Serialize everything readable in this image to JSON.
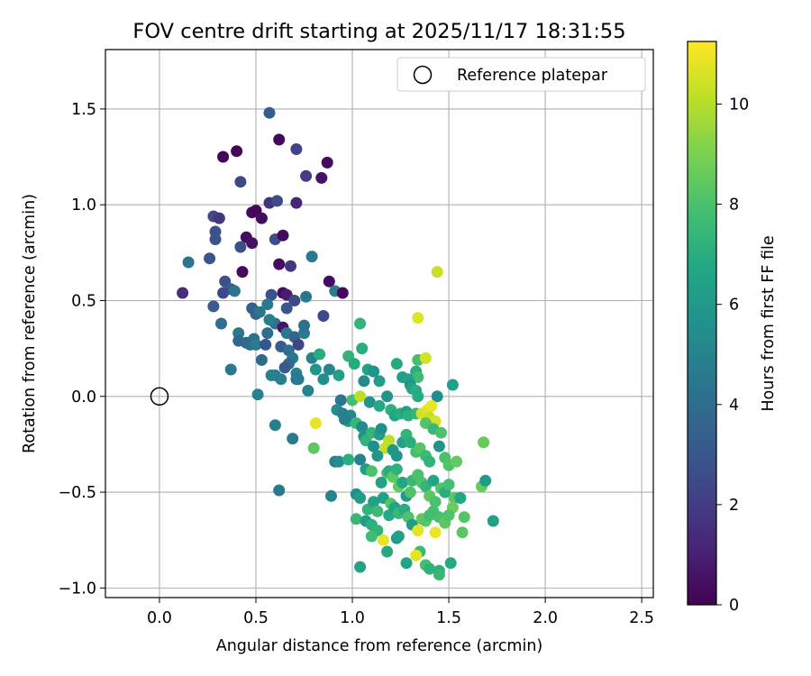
{
  "chart_data": {
    "type": "scatter",
    "title": "FOV centre drift starting at 2025/11/17 18:31:55",
    "xlabel": "Angular distance from reference (arcmin)",
    "ylabel": "Rotation from reference (arcmin)",
    "xlim": [
      -0.28,
      2.56
    ],
    "ylim": [
      -1.05,
      1.81
    ],
    "xticks": [
      0.0,
      0.5,
      1.0,
      1.5,
      2.0,
      2.5
    ],
    "xtick_labels": [
      "0.0",
      "0.5",
      "1.0",
      "1.5",
      "2.0",
      "2.5"
    ],
    "yticks": [
      -1.0,
      -0.5,
      0.0,
      0.5,
      1.0,
      1.5
    ],
    "ytick_labels": [
      "−1.0",
      "−0.5",
      "0.0",
      "0.5",
      "1.0",
      "1.5"
    ],
    "grid": true,
    "legend": {
      "label": "Reference platepar",
      "position": "top-right",
      "marker": "open-circle"
    },
    "reference_point": {
      "x": 0.0,
      "y": 0.0,
      "label": "Reference platepar"
    },
    "colorbar": {
      "label": "Hours from first FF file",
      "min": 0.0,
      "max": 11.25,
      "ticks": [
        0,
        2,
        4,
        6,
        8,
        10
      ],
      "tick_labels": [
        "0",
        "2",
        "4",
        "6",
        "8",
        "10"
      ],
      "colormap": "viridis"
    },
    "series": [
      {
        "name": "FOV centre positions (hours from first FF file)",
        "points": [
          [
            0.33,
            1.25,
            0.1
          ],
          [
            0.4,
            1.28,
            0.1
          ],
          [
            0.62,
            1.34,
            0.2
          ],
          [
            0.87,
            1.22,
            0.3
          ],
          [
            0.84,
            1.14,
            0.6
          ],
          [
            0.57,
            1.48,
            3.3
          ],
          [
            0.71,
            1.29,
            2.2
          ],
          [
            0.76,
            1.15,
            2.0
          ],
          [
            0.42,
            1.12,
            2.5
          ],
          [
            0.57,
            1.01,
            1.6
          ],
          [
            0.61,
            1.02,
            2.6
          ],
          [
            0.71,
            1.01,
            1.2
          ],
          [
            0.48,
            0.96,
            0.3
          ],
          [
            0.5,
            0.97,
            0.2
          ],
          [
            0.53,
            0.93,
            0.4
          ],
          [
            0.28,
            0.94,
            2.6
          ],
          [
            0.31,
            0.93,
            1.8
          ],
          [
            0.29,
            0.86,
            2.8
          ],
          [
            0.29,
            0.82,
            2.9
          ],
          [
            0.45,
            0.83,
            0.4
          ],
          [
            0.48,
            0.8,
            0.5
          ],
          [
            0.42,
            0.78,
            2.7
          ],
          [
            0.6,
            0.82,
            2.7
          ],
          [
            0.64,
            0.84,
            0.3
          ],
          [
            0.26,
            0.72,
            3.0
          ],
          [
            0.15,
            0.7,
            4.4
          ],
          [
            0.43,
            0.65,
            0.3
          ],
          [
            0.62,
            0.69,
            0.4
          ],
          [
            0.68,
            0.68,
            1.8
          ],
          [
            0.79,
            0.73,
            4.6
          ],
          [
            0.12,
            0.54,
            1.5
          ],
          [
            0.34,
            0.6,
            2.8
          ],
          [
            0.37,
            0.56,
            3.3
          ],
          [
            0.39,
            0.55,
            4.3
          ],
          [
            0.33,
            0.54,
            2.4
          ],
          [
            0.58,
            0.53,
            2.8
          ],
          [
            0.64,
            0.54,
            0.4
          ],
          [
            0.66,
            0.53,
            0.9
          ],
          [
            0.7,
            0.5,
            2.4
          ],
          [
            0.76,
            0.52,
            4.4
          ],
          [
            0.88,
            0.6,
            0.4
          ],
          [
            0.91,
            0.55,
            4.7
          ],
          [
            0.95,
            0.54,
            0.3
          ],
          [
            0.28,
            0.47,
            3.3
          ],
          [
            0.32,
            0.38,
            4.0
          ],
          [
            0.48,
            0.46,
            3.5
          ],
          [
            0.5,
            0.43,
            3.6
          ],
          [
            0.52,
            0.44,
            4.4
          ],
          [
            0.56,
            0.48,
            4.5
          ],
          [
            0.66,
            0.46,
            3.0
          ],
          [
            0.6,
            0.38,
            4.2
          ],
          [
            0.57,
            0.4,
            4.8
          ],
          [
            0.64,
            0.36,
            0.6
          ],
          [
            0.66,
            0.33,
            4.5
          ],
          [
            0.7,
            0.31,
            3.6
          ],
          [
            0.72,
            0.27,
            2.2
          ],
          [
            0.75,
            0.33,
            4.6
          ],
          [
            0.75,
            0.37,
            4.2
          ],
          [
            0.85,
            0.42,
            2.4
          ],
          [
            0.41,
            0.33,
            4.5
          ],
          [
            0.41,
            0.29,
            3.8
          ],
          [
            0.45,
            0.28,
            3.8
          ],
          [
            0.49,
            0.3,
            4.3
          ],
          [
            0.47,
            0.27,
            4.0
          ],
          [
            0.5,
            0.27,
            4.6
          ],
          [
            0.55,
            0.27,
            3.0
          ],
          [
            0.56,
            0.33,
            4.0
          ],
          [
            0.63,
            0.26,
            3.3
          ],
          [
            0.67,
            0.24,
            4.1
          ],
          [
            0.69,
            0.2,
            4.6
          ],
          [
            0.67,
            0.17,
            3.8
          ],
          [
            0.65,
            0.15,
            3.2
          ],
          [
            0.6,
            0.11,
            4.5
          ],
          [
            0.63,
            0.09,
            4.8
          ],
          [
            0.58,
            0.11,
            5.0
          ],
          [
            0.53,
            0.19,
            3.9
          ],
          [
            0.37,
            0.14,
            4.5
          ],
          [
            0.51,
            0.01,
            4.8
          ],
          [
            0.79,
            0.2,
            5.0
          ],
          [
            0.83,
            0.22,
            6.9
          ],
          [
            0.81,
            0.14,
            5.8
          ],
          [
            0.88,
            0.14,
            5.2
          ],
          [
            0.93,
            0.11,
            6.4
          ],
          [
            0.71,
            0.12,
            4.9
          ],
          [
            0.71,
            0.09,
            4.3
          ],
          [
            0.72,
            0.09,
            4.6
          ],
          [
            0.77,
            0.03,
            5.0
          ],
          [
            0.85,
            0.09,
            5.5
          ],
          [
            0.94,
            -0.02,
            4.4
          ],
          [
            0.98,
            0.21,
            7.3
          ],
          [
            1.01,
            0.17,
            6.9
          ],
          [
            1.05,
            0.25,
            7.0
          ],
          [
            1.04,
            0.38,
            7.3
          ],
          [
            1.06,
            0.08,
            5.3
          ],
          [
            1.08,
            0.14,
            6.5
          ],
          [
            1.11,
            0.13,
            5.8
          ],
          [
            1.14,
            0.08,
            6.2
          ],
          [
            1.18,
            0.0,
            5.7
          ],
          [
            1.23,
            0.17,
            6.8
          ],
          [
            1.26,
            0.1,
            6.2
          ],
          [
            1.33,
            0.13,
            7.0
          ],
          [
            1.34,
            0.1,
            7.7
          ],
          [
            1.34,
            0.19,
            7.9
          ],
          [
            1.29,
            0.09,
            6.5
          ],
          [
            1.3,
            0.06,
            5.9
          ],
          [
            1.31,
            0.04,
            6.4
          ],
          [
            1.33,
            0.03,
            7.0
          ],
          [
            1.34,
            0.0,
            6.9
          ],
          [
            1.34,
            0.41,
            10.7
          ],
          [
            1.44,
            0.65,
            10.3
          ],
          [
            1.38,
            0.2,
            10.5
          ],
          [
            1.44,
            0.0,
            5.5
          ],
          [
            1.52,
            0.06,
            6.3
          ],
          [
            1.0,
            -0.02,
            7.8
          ],
          [
            1.04,
            0.0,
            10.1
          ],
          [
            1.09,
            -0.03,
            5.8
          ],
          [
            1.14,
            -0.05,
            6.8
          ],
          [
            1.2,
            -0.07,
            7.1
          ],
          [
            1.22,
            -0.1,
            6.6
          ],
          [
            1.25,
            -0.09,
            7.0
          ],
          [
            1.28,
            -0.08,
            6.3
          ],
          [
            1.29,
            -0.1,
            7.1
          ],
          [
            1.33,
            -0.09,
            7.4
          ],
          [
            1.36,
            -0.09,
            10.5
          ],
          [
            1.39,
            -0.07,
            10.8
          ],
          [
            1.41,
            -0.05,
            10.9
          ],
          [
            1.4,
            -0.11,
            10.3
          ],
          [
            1.43,
            -0.13,
            10.6
          ],
          [
            1.38,
            -0.14,
            8.2
          ],
          [
            1.42,
            -0.17,
            7.5
          ],
          [
            1.46,
            -0.19,
            8.0
          ],
          [
            0.81,
            -0.14,
            10.9
          ],
          [
            0.8,
            -0.27,
            8.4
          ],
          [
            0.92,
            -0.07,
            5.4
          ],
          [
            0.95,
            -0.09,
            4.8
          ],
          [
            0.98,
            -0.13,
            6.4
          ],
          [
            0.99,
            -0.1,
            5.2
          ],
          [
            0.96,
            -0.12,
            4.9
          ],
          [
            1.02,
            -0.14,
            7.5
          ],
          [
            1.05,
            -0.16,
            5.3
          ],
          [
            1.06,
            -0.21,
            5.7
          ],
          [
            1.07,
            -0.23,
            7.3
          ],
          [
            1.1,
            -0.19,
            7.4
          ],
          [
            1.11,
            -0.26,
            5.6
          ],
          [
            1.14,
            -0.2,
            6.2
          ],
          [
            1.15,
            -0.17,
            5.6
          ],
          [
            1.17,
            -0.27,
            10.3
          ],
          [
            1.19,
            -0.23,
            10.1
          ],
          [
            1.21,
            -0.28,
            6.0
          ],
          [
            1.23,
            -0.31,
            5.9
          ],
          [
            1.26,
            -0.24,
            6.4
          ],
          [
            1.28,
            -0.2,
            7.3
          ],
          [
            1.3,
            -0.24,
            7.0
          ],
          [
            1.33,
            -0.29,
            7.8
          ],
          [
            1.35,
            -0.27,
            8.2
          ],
          [
            1.38,
            -0.31,
            7.6
          ],
          [
            1.4,
            -0.34,
            7.3
          ],
          [
            1.45,
            -0.26,
            5.8
          ],
          [
            1.48,
            -0.32,
            8.0
          ],
          [
            1.5,
            -0.36,
            8.1
          ],
          [
            1.54,
            -0.34,
            8.5
          ],
          [
            1.68,
            -0.24,
            8.6
          ],
          [
            0.6,
            -0.15,
            4.8
          ],
          [
            0.69,
            -0.22,
            4.6
          ],
          [
            0.91,
            -0.34,
            4.9
          ],
          [
            0.93,
            -0.34,
            5.4
          ],
          [
            0.98,
            -0.33,
            7.0
          ],
          [
            1.04,
            -0.33,
            5.0
          ],
          [
            1.07,
            -0.38,
            6.2
          ],
          [
            1.1,
            -0.39,
            8.0
          ],
          [
            1.13,
            -0.31,
            5.9
          ],
          [
            1.15,
            -0.45,
            6.5
          ],
          [
            1.18,
            -0.4,
            8.0
          ],
          [
            1.19,
            -0.39,
            6.9
          ],
          [
            1.21,
            -0.42,
            8.4
          ],
          [
            1.23,
            -0.38,
            7.2
          ],
          [
            1.24,
            -0.47,
            8.5
          ],
          [
            1.26,
            -0.45,
            6.7
          ],
          [
            1.28,
            -0.52,
            6.0
          ],
          [
            1.3,
            -0.5,
            8.1
          ],
          [
            1.31,
            -0.44,
            7.5
          ],
          [
            1.34,
            -0.41,
            8.0
          ],
          [
            1.36,
            -0.45,
            8.1
          ],
          [
            1.38,
            -0.47,
            7.4
          ],
          [
            1.4,
            -0.52,
            8.4
          ],
          [
            1.42,
            -0.44,
            6.6
          ],
          [
            1.43,
            -0.55,
            8.0
          ],
          [
            1.46,
            -0.48,
            8.2
          ],
          [
            1.48,
            -0.5,
            7.0
          ],
          [
            1.5,
            -0.46,
            7.9
          ],
          [
            1.53,
            -0.53,
            8.3
          ],
          [
            1.56,
            -0.53,
            6.7
          ],
          [
            1.58,
            -0.63,
            8.2
          ],
          [
            1.67,
            -0.47,
            8.6
          ],
          [
            1.69,
            -0.44,
            6.1
          ],
          [
            1.73,
            -0.65,
            6.4
          ],
          [
            0.62,
            -0.49,
            4.6
          ],
          [
            0.89,
            -0.52,
            5.1
          ],
          [
            1.02,
            -0.51,
            5.6
          ],
          [
            1.04,
            -0.53,
            6.2
          ],
          [
            1.08,
            -0.59,
            7.3
          ],
          [
            1.11,
            -0.55,
            6.5
          ],
          [
            1.13,
            -0.6,
            7.6
          ],
          [
            1.16,
            -0.53,
            6.4
          ],
          [
            1.19,
            -0.62,
            6.8
          ],
          [
            1.2,
            -0.56,
            8.2
          ],
          [
            1.22,
            -0.58,
            6.5
          ],
          [
            1.24,
            -0.61,
            7.5
          ],
          [
            1.27,
            -0.59,
            6.9
          ],
          [
            1.29,
            -0.63,
            8.1
          ],
          [
            1.31,
            -0.67,
            6.2
          ],
          [
            1.34,
            -0.7,
            10.8
          ],
          [
            1.36,
            -0.64,
            8.5
          ],
          [
            1.38,
            -0.65,
            8.3
          ],
          [
            1.4,
            -0.62,
            7.7
          ],
          [
            1.43,
            -0.71,
            10.9
          ],
          [
            1.45,
            -0.63,
            8.0
          ],
          [
            1.48,
            -0.66,
            8.4
          ],
          [
            1.52,
            -0.58,
            8.7
          ],
          [
            1.57,
            -0.71,
            8.3
          ],
          [
            1.02,
            -0.64,
            7.5
          ],
          [
            1.07,
            -0.65,
            6.2
          ],
          [
            1.1,
            -0.67,
            7.1
          ],
          [
            1.13,
            -0.7,
            7.3
          ],
          [
            1.1,
            -0.73,
            7.7
          ],
          [
            1.16,
            -0.75,
            10.9
          ],
          [
            1.18,
            -0.81,
            6.8
          ],
          [
            1.23,
            -0.74,
            5.8
          ],
          [
            1.35,
            -0.81,
            7.6
          ],
          [
            1.33,
            -0.83,
            10.8
          ],
          [
            1.28,
            -0.87,
            6.6
          ],
          [
            1.38,
            -0.88,
            7.9
          ],
          [
            1.4,
            -0.9,
            7.2
          ],
          [
            1.45,
            -0.91,
            7.0
          ],
          [
            1.45,
            -0.93,
            7.5
          ],
          [
            1.51,
            -0.87,
            6.8
          ],
          [
            1.04,
            -0.89,
            6.5
          ],
          [
            1.42,
            -0.6,
            7.9
          ],
          [
            1.5,
            -0.62,
            8.1
          ],
          [
            1.24,
            -0.73,
            6.4
          ]
        ]
      }
    ]
  }
}
